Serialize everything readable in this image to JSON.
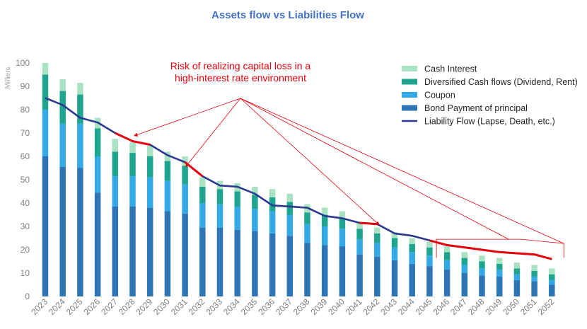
{
  "chart_data": {
    "type": "bar",
    "title": "Assets flow vs Liabilities Flow",
    "ylabel": "Milliers",
    "ylim": [
      0,
      100
    ],
    "yticks": [
      0,
      10,
      20,
      30,
      40,
      50,
      60,
      70,
      80,
      90,
      100
    ],
    "grid": false,
    "legend_position": "top-right",
    "categories": [
      "2023",
      "2024",
      "2025",
      "2026",
      "2027",
      "2028",
      "2029",
      "2030",
      "2031",
      "2032",
      "2033",
      "2034",
      "2035",
      "2036",
      "2037",
      "2038",
      "2039",
      "2040",
      "2041",
      "2042",
      "2043",
      "2044",
      "2045",
      "2046",
      "2047",
      "2048",
      "2049",
      "2050",
      "2051",
      "2052"
    ],
    "series": [
      {
        "name": "Bond Payment of principal",
        "kind": "bar",
        "color": "#2e75b6",
        "values": [
          60,
          55.5,
          55,
          44.5,
          38.5,
          38.5,
          38,
          36.5,
          35.5,
          29.5,
          29.5,
          28.5,
          28,
          27,
          26,
          23,
          22,
          21.5,
          18,
          17,
          15.5,
          14,
          13,
          11.5,
          10,
          9,
          8.5,
          7,
          6.5,
          5
        ]
      },
      {
        "name": "Coupon",
        "kind": "bar",
        "color": "#33a9e6",
        "values": [
          20,
          18.5,
          19,
          15.5,
          13,
          13,
          13,
          13,
          12.5,
          10.5,
          10,
          10,
          9.5,
          9.5,
          9,
          8,
          8,
          7.5,
          6.5,
          6,
          5.5,
          5,
          4.5,
          4,
          3.5,
          3,
          3,
          2.5,
          2,
          2
        ]
      },
      {
        "name": "Diversified Cash flows (Dividend, Rent)",
        "kind": "bar",
        "color": "#1fa58f",
        "values": [
          15,
          14,
          12.5,
          12,
          10.5,
          10,
          9,
          8.5,
          8,
          7,
          6.5,
          6.5,
          6,
          6,
          5.5,
          5,
          5,
          4.5,
          4.5,
          4,
          4,
          3.5,
          3.5,
          3.5,
          3,
          3,
          2.5,
          2.5,
          2.5,
          2.5
        ]
      },
      {
        "name": "Cash Interest",
        "kind": "bar",
        "color": "#a9e3c4",
        "values": [
          5,
          5,
          5,
          4.5,
          5.5,
          4.5,
          4.5,
          4,
          4,
          4,
          3.5,
          3.5,
          3.5,
          3.5,
          3.5,
          3.5,
          3,
          3,
          2.5,
          2.5,
          2.5,
          2.5,
          2.5,
          2.5,
          2.5,
          2.5,
          2.5,
          2.5,
          2.5,
          2.5
        ]
      },
      {
        "name": "Liability Flow (Lapse, Death, etc.)",
        "kind": "line",
        "color": "#2b3990",
        "values": [
          85,
          82,
          76.5,
          74.5,
          70,
          66.5,
          65,
          60.5,
          57.5,
          51.5,
          47.5,
          47,
          44,
          39,
          38.5,
          38,
          34.5,
          33.5,
          31.5,
          31,
          27,
          26,
          24,
          22,
          21,
          20,
          19,
          18.5,
          18,
          16
        ]
      }
    ],
    "legend_order": [
      "Cash Interest",
      "Diversified Cash flows (Dividend, Rent)",
      "Coupon",
      "Bond Payment of principal",
      "Liability Flow (Lapse, Death, etc.)"
    ],
    "highlight": {
      "color": "#e8000b",
      "segments": [
        [
          "2027",
          "2029"
        ],
        [
          "2031",
          "2032"
        ],
        [
          "2041",
          "2042"
        ],
        [
          "2045",
          "2052"
        ]
      ]
    },
    "annotation": {
      "lines": [
        "Risk of realizing capital loss in a",
        "high-interest rate environment"
      ],
      "color": "#e8000b"
    }
  }
}
